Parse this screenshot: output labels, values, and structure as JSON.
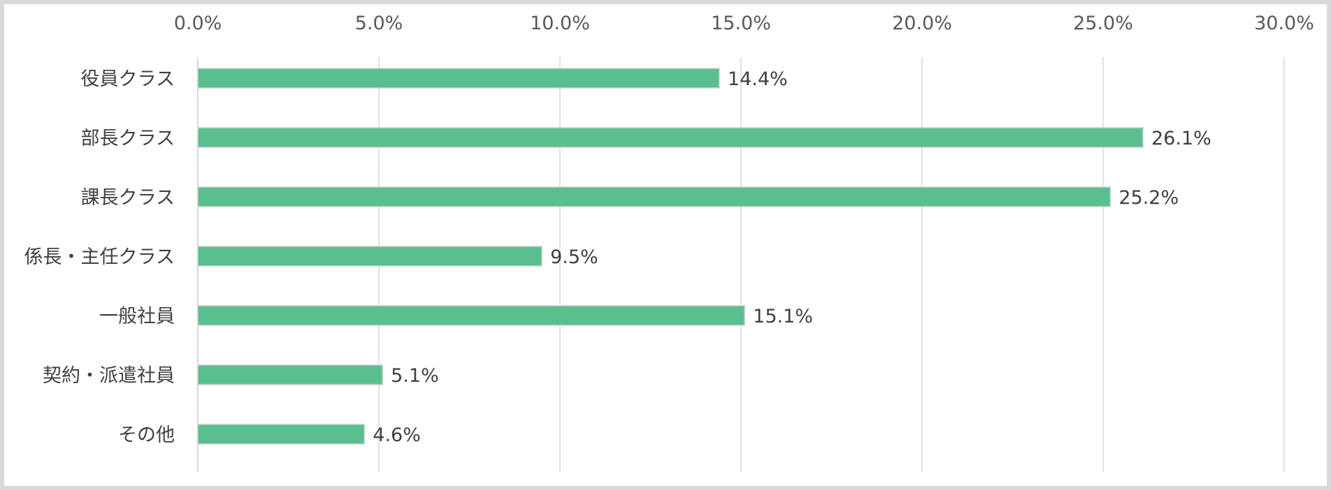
{
  "chart_data": {
    "type": "bar",
    "orientation": "horizontal",
    "title": "",
    "xlabel": "",
    "ylabel": "",
    "xlim": [
      0,
      30
    ],
    "x_ticks": [
      "0.0%",
      "5.0%",
      "10.0%",
      "15.0%",
      "20.0%",
      "25.0%",
      "30.0%"
    ],
    "x_axis_position": "top",
    "grid": true,
    "legend": "none",
    "categories": [
      "役員クラス",
      "部長クラス",
      "課長クラス",
      "係長・主任クラス",
      "一般社員",
      "契約・派遣社員",
      "その他"
    ],
    "values": [
      14.4,
      26.1,
      25.2,
      9.5,
      15.1,
      5.1,
      4.6
    ],
    "data_labels": [
      "14.4%",
      "26.1%",
      "25.2%",
      "9.5%",
      "15.1%",
      "5.1%",
      "4.6%"
    ],
    "colors": {
      "bar": "#5abf8f",
      "bar_edge": "#d0d0d0",
      "grid": "#d9d9d9",
      "frame": "#d9d9d9"
    }
  }
}
